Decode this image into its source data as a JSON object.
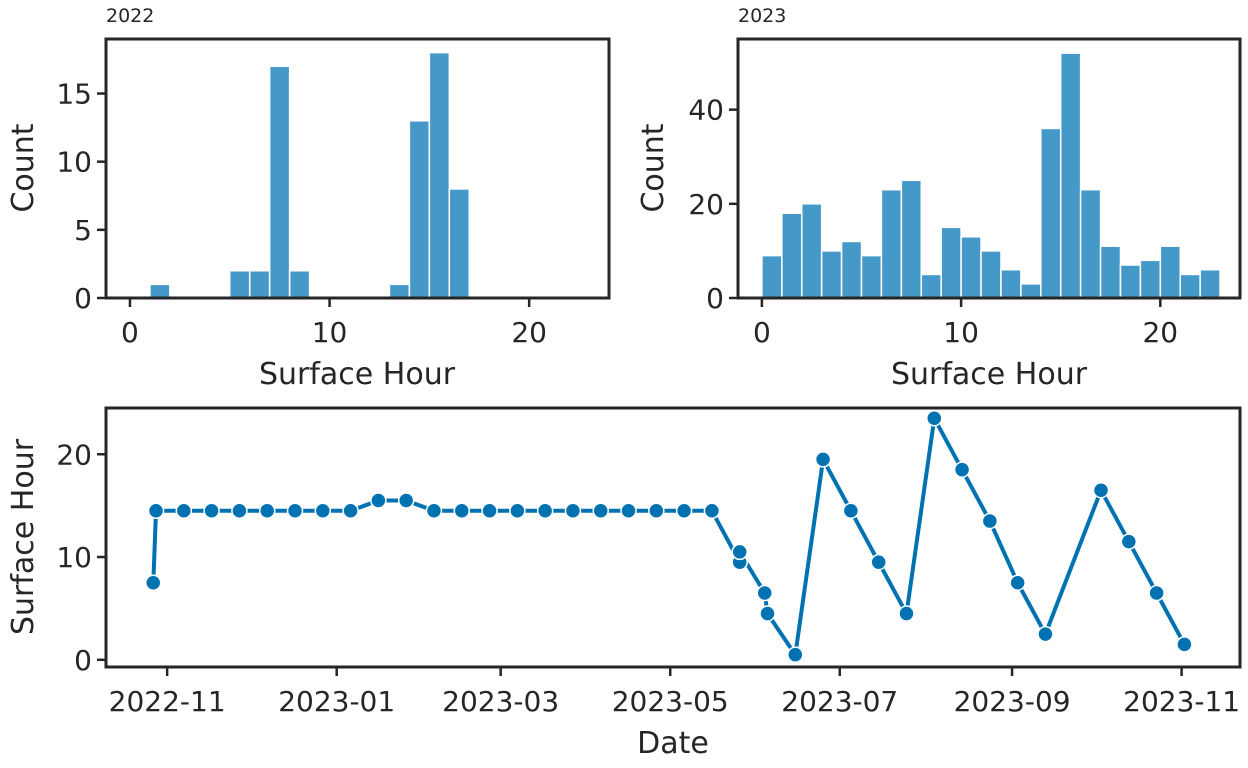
{
  "chart_data": [
    {
      "type": "bar",
      "title": "2022",
      "xlabel": "Surface Hour",
      "ylabel": "Count",
      "xlim": [
        -1.2,
        24
      ],
      "ylim": [
        0,
        19
      ],
      "xticks": [
        0,
        10,
        20
      ],
      "yticks": [
        0,
        5,
        10,
        15
      ],
      "bin_width": 1,
      "bins": [
        1,
        5,
        6,
        7,
        8,
        13,
        14,
        15,
        16
      ],
      "values": [
        1,
        2,
        2,
        17,
        2,
        1,
        13,
        18,
        8
      ],
      "color": "#4599c8",
      "grid": false
    },
    {
      "type": "bar",
      "title": "2023",
      "xlabel": "Surface Hour",
      "ylabel": "Count",
      "xlim": [
        -1.2,
        24
      ],
      "ylim": [
        0,
        55
      ],
      "xticks": [
        0,
        10,
        20
      ],
      "yticks": [
        0,
        20,
        40
      ],
      "bin_width": 1,
      "bins": [
        0,
        1,
        2,
        3,
        4,
        5,
        6,
        7,
        8,
        9,
        10,
        11,
        12,
        13,
        14,
        15,
        16,
        17,
        18,
        19,
        20,
        21,
        22
      ],
      "values": [
        9,
        18,
        20,
        10,
        12,
        9,
        23,
        25,
        5,
        15,
        13,
        10,
        6,
        3,
        36,
        52,
        23,
        11,
        7,
        8,
        11,
        5,
        6
      ],
      "color": "#4599c8",
      "grid": false
    },
    {
      "type": "line",
      "xlabel": "Date",
      "ylabel": "Surface Hour",
      "xlim": [
        "2022-10-10",
        "2023-11-22"
      ],
      "ylim": [
        -0.7,
        24.5
      ],
      "xticks": [
        "2022-11-01",
        "2023-01-01",
        "2023-03-01",
        "2023-05-01",
        "2023-07-01",
        "2023-09-01",
        "2023-11-01"
      ],
      "xtick_labels": [
        "2022-11",
        "2023-01",
        "2023-03",
        "2023-05",
        "2023-07",
        "2023-09",
        "2023-11"
      ],
      "yticks": [
        0,
        10,
        20
      ],
      "markers": true,
      "color": "#0072b2",
      "grid": false,
      "points": [
        {
          "x": "2022-10-27",
          "y": 7.5
        },
        {
          "x": "2022-10-28",
          "y": 14.5
        },
        {
          "x": "2022-11-07",
          "y": 14.5
        },
        {
          "x": "2022-11-17",
          "y": 14.5
        },
        {
          "x": "2022-11-27",
          "y": 14.5
        },
        {
          "x": "2022-12-07",
          "y": 14.5
        },
        {
          "x": "2022-12-17",
          "y": 14.5
        },
        {
          "x": "2022-12-27",
          "y": 14.5
        },
        {
          "x": "2023-01-06",
          "y": 14.5
        },
        {
          "x": "2023-01-16",
          "y": 15.5
        },
        {
          "x": "2023-01-26",
          "y": 15.5
        },
        {
          "x": "2023-02-05",
          "y": 14.5
        },
        {
          "x": "2023-02-15",
          "y": 14.5
        },
        {
          "x": "2023-02-25",
          "y": 14.5
        },
        {
          "x": "2023-03-07",
          "y": 14.5
        },
        {
          "x": "2023-03-17",
          "y": 14.5
        },
        {
          "x": "2023-03-27",
          "y": 14.5
        },
        {
          "x": "2023-04-06",
          "y": 14.5
        },
        {
          "x": "2023-04-16",
          "y": 14.5
        },
        {
          "x": "2023-04-26",
          "y": 14.5
        },
        {
          "x": "2023-05-06",
          "y": 14.5
        },
        {
          "x": "2023-05-16",
          "y": 14.5
        },
        {
          "x": "2023-05-26",
          "y": 9.5
        },
        {
          "x": "2023-05-26",
          "y": 10.5
        },
        {
          "x": "2023-06-04",
          "y": 6.5
        },
        {
          "x": "2023-06-05",
          "y": 4.5
        },
        {
          "x": "2023-06-15",
          "y": 0.5
        },
        {
          "x": "2023-06-25",
          "y": 19.5
        },
        {
          "x": "2023-07-05",
          "y": 14.5
        },
        {
          "x": "2023-07-15",
          "y": 9.5
        },
        {
          "x": "2023-07-25",
          "y": 4.5
        },
        {
          "x": "2023-08-04",
          "y": 23.5
        },
        {
          "x": "2023-08-14",
          "y": 18.5
        },
        {
          "x": "2023-08-24",
          "y": 13.5
        },
        {
          "x": "2023-09-03",
          "y": 7.5
        },
        {
          "x": "2023-09-13",
          "y": 2.5
        },
        {
          "x": "2023-10-03",
          "y": 16.5
        },
        {
          "x": "2023-10-13",
          "y": 11.5
        },
        {
          "x": "2023-10-23",
          "y": 6.5
        },
        {
          "x": "2023-11-02",
          "y": 1.5
        }
      ]
    }
  ]
}
